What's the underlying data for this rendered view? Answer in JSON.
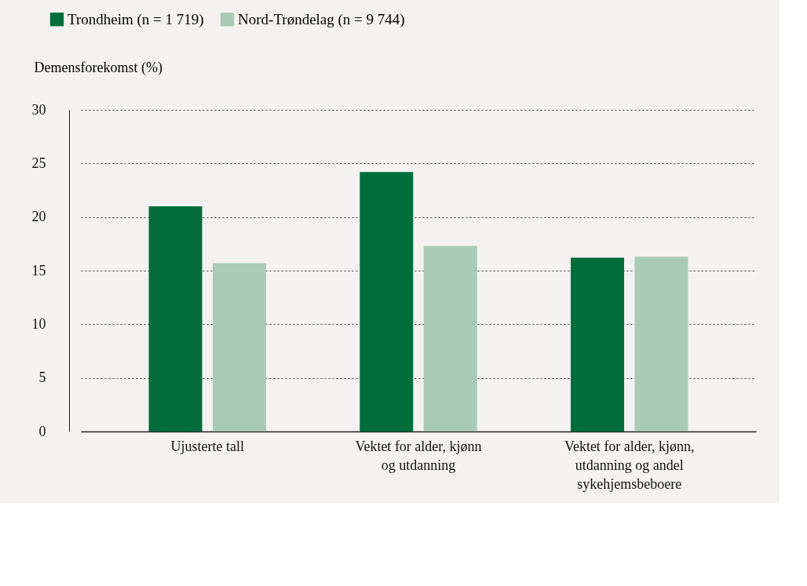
{
  "chart_data": {
    "type": "bar",
    "ylabel": "Demensforekomst (%)",
    "categories": [
      "Ujusterte tall",
      "Vektet for alder, kjønn\nog utdanning",
      "Vektet for alder, kjønn,\nutdanning og andel\nsykehjemsbeboere"
    ],
    "series": [
      {
        "name": "Trondheim (n = 1 719)",
        "color": "#006d3b",
        "values": [
          21.0,
          24.2,
          16.2
        ]
      },
      {
        "name": "Nord-Trøndelag (n = 9 744)",
        "color": "#a8cab6",
        "values": [
          15.7,
          17.3,
          16.3
        ]
      }
    ],
    "ylim": [
      0,
      30
    ],
    "yticks": [
      0,
      5,
      10,
      15,
      20,
      25,
      30
    ],
    "grid": "y",
    "legend": "top left"
  }
}
